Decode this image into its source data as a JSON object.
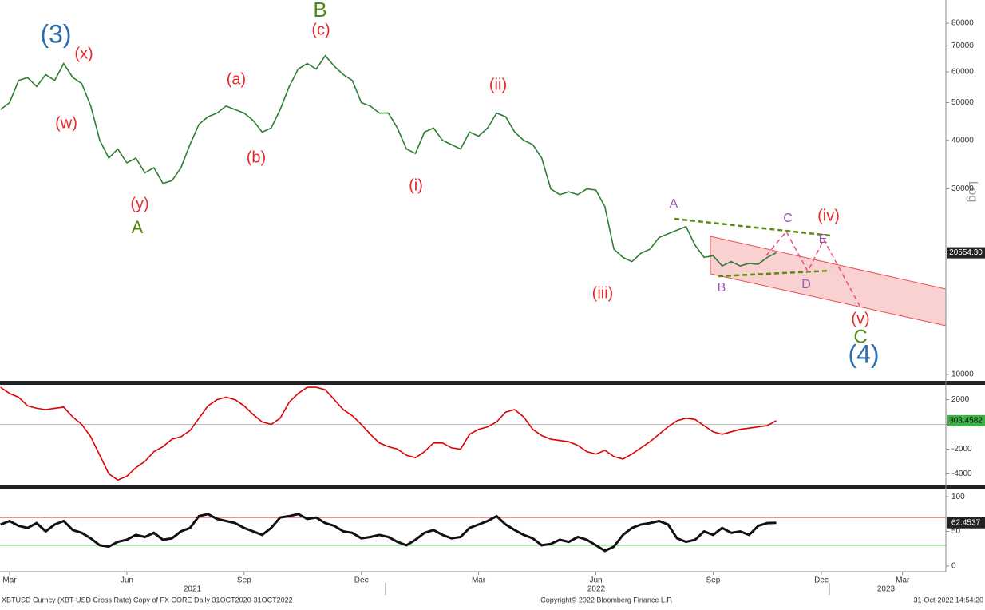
{
  "chart_data": [
    {
      "type": "line",
      "log_scale": true,
      "grid": false,
      "scale_label": "Log",
      "color": "#2e7d32",
      "categories": [
        null,
        "Mar",
        null,
        null,
        null,
        null,
        null,
        null,
        null,
        null,
        null,
        null,
        null,
        null,
        "Jun",
        null,
        null,
        null,
        null,
        null,
        null,
        null,
        null,
        null,
        null,
        null,
        null,
        "Sep",
        null,
        null,
        null,
        null,
        null,
        null,
        null,
        null,
        null,
        null,
        null,
        null,
        "Dec",
        null,
        null,
        null,
        null,
        null,
        null,
        null,
        null,
        null,
        null,
        null,
        null,
        "Mar",
        null,
        null,
        null,
        null,
        null,
        null,
        null,
        null,
        null,
        null,
        null,
        null,
        "Jun",
        null,
        null,
        null,
        null,
        null,
        null,
        null,
        null,
        null,
        null,
        null,
        null,
        "Sep",
        null,
        null,
        null,
        null,
        null,
        null,
        null,
        null,
        null,
        null,
        null,
        "Dec",
        null,
        null,
        null,
        null,
        null,
        null,
        null,
        null,
        "Mar",
        null
      ],
      "year_labels": [
        "2021",
        "2022",
        "2023"
      ],
      "values": [
        48000,
        50000,
        57000,
        58000,
        55000,
        59000,
        57000,
        63000,
        58000,
        56000,
        49000,
        40000,
        36000,
        38000,
        35000,
        36000,
        33000,
        34000,
        31000,
        31500,
        34000,
        39000,
        44000,
        46000,
        47000,
        49000,
        48000,
        47000,
        45000,
        42000,
        43000,
        48000,
        55000,
        61000,
        63000,
        61000,
        66000,
        62000,
        59000,
        57000,
        50000,
        49000,
        47000,
        47000,
        43000,
        38000,
        37000,
        42000,
        43000,
        40000,
        39000,
        38000,
        42000,
        41000,
        43000,
        47000,
        46000,
        42000,
        40000,
        39000,
        36000,
        30000,
        29000,
        29500,
        29000,
        30000,
        29800,
        27000,
        21000,
        20000,
        19500,
        20500,
        21000,
        22500,
        23000,
        23500,
        24000,
        21500,
        20000,
        20200,
        19000,
        19500,
        19000,
        19300,
        19200,
        20000,
        20554.3,
        null,
        null,
        null,
        null,
        null,
        null,
        null,
        null,
        null,
        null,
        null,
        null,
        null,
        null,
        null
      ],
      "last_label": "20554.30",
      "ylim": [
        9630,
        91800
      ],
      "yticks": [
        10000,
        30000,
        40000,
        50000,
        60000,
        70000,
        80000
      ],
      "annotations": [
        {
          "text": "(3)",
          "color": "#2a6fb0"
        },
        {
          "text": "(x)",
          "color": "#e8282a"
        },
        {
          "text": "(w)",
          "color": "#e8282a"
        },
        {
          "text": "(y)",
          "color": "#e8282a"
        },
        {
          "text": "A",
          "color": "#4f8a10"
        },
        {
          "text": "(a)",
          "color": "#e8282a"
        },
        {
          "text": "(b)",
          "color": "#e8282a"
        },
        {
          "text": "B",
          "color": "#4f8a10"
        },
        {
          "text": "(c)",
          "color": "#e8282a"
        },
        {
          "text": "(ii)",
          "color": "#e8282a"
        },
        {
          "text": "(i)",
          "color": "#e8282a"
        },
        {
          "text": "(iii)",
          "color": "#e8282a"
        },
        {
          "text": "A",
          "color": "#9b59b6"
        },
        {
          "text": "B",
          "color": "#9b59b6"
        },
        {
          "text": "C",
          "color": "#9b59b6"
        },
        {
          "text": "D",
          "color": "#9b59b6"
        },
        {
          "text": "E",
          "color": "#9b59b6"
        },
        {
          "text": "(iv)",
          "color": "#e8282a"
        },
        {
          "text": "(v)",
          "color": "#e8282a"
        },
        {
          "text": "C",
          "color": "#4f8a10"
        },
        {
          "text": "(4)",
          "color": "#2a6fb0"
        }
      ]
    },
    {
      "type": "line",
      "grid": false,
      "color": "#e00000",
      "values": [
        3000,
        2500,
        2200,
        1500,
        1300,
        1200,
        1300,
        1400,
        600,
        0,
        -1000,
        -2500,
        -4000,
        -4500,
        -4200,
        -3500,
        -3000,
        -2200,
        -1800,
        -1200,
        -1000,
        -500,
        500,
        1500,
        2000,
        2200,
        2000,
        1500,
        800,
        200,
        0,
        500,
        1800,
        2500,
        3000,
        3000,
        2800,
        2000,
        1200,
        700,
        0,
        -800,
        -1500,
        -1800,
        -2000,
        -2500,
        -2700,
        -2200,
        -1500,
        -1500,
        -1900,
        -2000,
        -800,
        -400,
        -200,
        200,
        1000,
        1200,
        600,
        -400,
        -900,
        -1200,
        -1300,
        -1400,
        -1700,
        -2200,
        -2400,
        -2100,
        -2600,
        -2800,
        -2400,
        -1900,
        -1400,
        -800,
        -200,
        300,
        500,
        400,
        -100,
        -600,
        -800,
        -600,
        -400,
        -300,
        -200,
        -100,
        303.4582,
        null,
        null,
        null,
        null,
        null,
        null,
        null,
        null,
        null,
        null,
        null,
        null,
        null,
        null,
        null
      ],
      "ylim": [
        -4940,
        3200
      ],
      "yticks": [
        2000,
        0,
        -2000,
        -4000
      ]
    },
    {
      "type": "line",
      "grid": false,
      "color": "#111111",
      "values": [
        60,
        65,
        58,
        55,
        62,
        50,
        60,
        65,
        52,
        48,
        40,
        30,
        28,
        35,
        38,
        45,
        42,
        48,
        38,
        40,
        50,
        55,
        72,
        75,
        68,
        65,
        62,
        55,
        50,
        45,
        55,
        70,
        72,
        75,
        68,
        70,
        62,
        58,
        50,
        48,
        40,
        42,
        45,
        42,
        35,
        30,
        38,
        48,
        52,
        45,
        40,
        42,
        55,
        60,
        65,
        72,
        60,
        52,
        45,
        40,
        30,
        32,
        38,
        35,
        42,
        38,
        30,
        22,
        28,
        45,
        55,
        60,
        62,
        65,
        60,
        40,
        35,
        38,
        50,
        45,
        55,
        48,
        50,
        45,
        58,
        62,
        62.4537,
        null,
        null,
        null,
        null,
        null,
        null,
        null,
        null,
        null,
        null,
        null,
        null,
        null,
        null,
        null
      ],
      "levels": [
        {
          "value": 70,
          "color": "#e05050"
        },
        {
          "value": 30,
          "color": "#40b040"
        }
      ],
      "ylim": [
        -8.1,
        110.5
      ],
      "yticks": [
        0,
        50,
        100
      ]
    }
  ],
  "footer": {
    "left": "XBTUSD Curncy (XBT-USD Cross Rate) Copy of FX CORE  Daily 31OCT2020-31OCT2022",
    "center": "Copyright© 2022 Bloomberg Finance L.P.",
    "right": "31-Oct-2022 14:54:20"
  }
}
